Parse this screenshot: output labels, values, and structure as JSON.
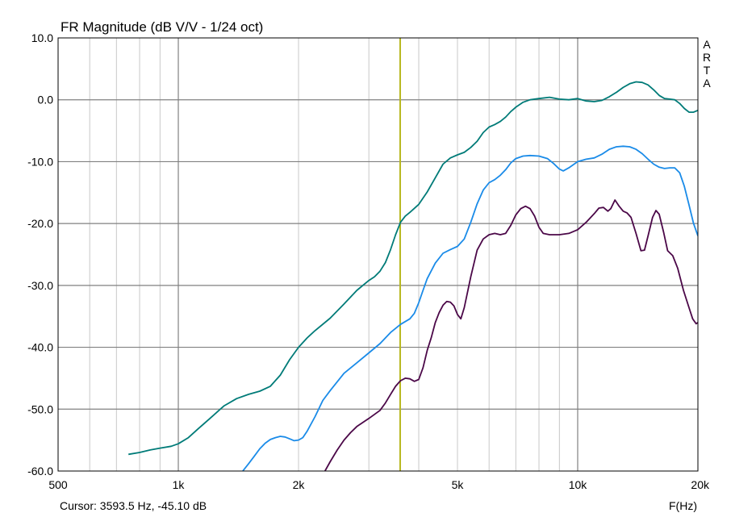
{
  "chart_data": {
    "type": "line",
    "title": "FR Magnitude (dB V/V - 1/24 oct)",
    "xlabel": "F(Hz)",
    "ylabel": "",
    "x_scale": "log",
    "xlim": [
      500,
      20000
    ],
    "ylim": [
      -60,
      10
    ],
    "grid": true,
    "x_ticks": [
      {
        "value": 500,
        "label": "500"
      },
      {
        "value": 1000,
        "label": "1k"
      },
      {
        "value": 2000,
        "label": "2k"
      },
      {
        "value": 5000,
        "label": "5k"
      },
      {
        "value": 10000,
        "label": "10k"
      },
      {
        "value": 20000,
        "label": "20k"
      }
    ],
    "y_ticks": [
      {
        "value": 10,
        "label": "10.0"
      },
      {
        "value": 0,
        "label": "0.0"
      },
      {
        "value": -10,
        "label": "-10.0"
      },
      {
        "value": -20,
        "label": "-20.0"
      },
      {
        "value": -30,
        "label": "-30.0"
      },
      {
        "value": -40,
        "label": "-40.0"
      },
      {
        "value": -50,
        "label": "-50.0"
      },
      {
        "value": -60,
        "label": "-60.0"
      }
    ],
    "cursor_freq": 3593.5,
    "cursor_text": "Cursor: 3593.5 Hz, -45.10 dB",
    "brand": "ARTA",
    "colors": {
      "series_1": "#007b78",
      "series_2": "#1a8be8",
      "series_3": "#4b0848",
      "cursor": "#b8b820",
      "grid_major": "#808080",
      "grid_minor": "#c8c8c8"
    },
    "series": [
      {
        "color": "#007b78",
        "points": [
          [
            750,
            -57.3
          ],
          [
            800,
            -57.0
          ],
          [
            850,
            -56.6
          ],
          [
            900,
            -56.3
          ],
          [
            960,
            -56.0
          ],
          [
            1000,
            -55.6
          ],
          [
            1060,
            -54.6
          ],
          [
            1120,
            -53.2
          ],
          [
            1200,
            -51.5
          ],
          [
            1300,
            -49.5
          ],
          [
            1400,
            -48.3
          ],
          [
            1500,
            -47.6
          ],
          [
            1600,
            -47.1
          ],
          [
            1700,
            -46.3
          ],
          [
            1800,
            -44.5
          ],
          [
            1900,
            -42.0
          ],
          [
            2000,
            -40.0
          ],
          [
            2100,
            -38.5
          ],
          [
            2200,
            -37.3
          ],
          [
            2400,
            -35.3
          ],
          [
            2600,
            -33.0
          ],
          [
            2800,
            -30.8
          ],
          [
            3000,
            -29.2
          ],
          [
            3100,
            -28.6
          ],
          [
            3200,
            -27.7
          ],
          [
            3300,
            -26.3
          ],
          [
            3400,
            -24.2
          ],
          [
            3500,
            -21.8
          ],
          [
            3600,
            -19.8
          ],
          [
            3700,
            -18.8
          ],
          [
            3800,
            -18.2
          ],
          [
            4000,
            -16.9
          ],
          [
            4200,
            -14.9
          ],
          [
            4400,
            -12.6
          ],
          [
            4600,
            -10.4
          ],
          [
            4800,
            -9.4
          ],
          [
            5000,
            -8.9
          ],
          [
            5200,
            -8.5
          ],
          [
            5400,
            -7.7
          ],
          [
            5600,
            -6.7
          ],
          [
            5800,
            -5.3
          ],
          [
            6000,
            -4.4
          ],
          [
            6200,
            -4.0
          ],
          [
            6400,
            -3.5
          ],
          [
            6600,
            -2.8
          ],
          [
            6800,
            -1.9
          ],
          [
            7000,
            -1.2
          ],
          [
            7300,
            -0.4
          ],
          [
            7600,
            0.0
          ],
          [
            8000,
            0.2
          ],
          [
            8500,
            0.4
          ],
          [
            9000,
            0.1
          ],
          [
            9500,
            0.0
          ],
          [
            10000,
            0.2
          ],
          [
            10500,
            -0.2
          ],
          [
            11000,
            -0.3
          ],
          [
            11500,
            -0.1
          ],
          [
            12000,
            0.5
          ],
          [
            12500,
            1.2
          ],
          [
            13000,
            2.0
          ],
          [
            13500,
            2.6
          ],
          [
            14000,
            2.9
          ],
          [
            14500,
            2.8
          ],
          [
            15000,
            2.4
          ],
          [
            15500,
            1.6
          ],
          [
            16000,
            0.7
          ],
          [
            16500,
            0.2
          ],
          [
            17000,
            0.1
          ],
          [
            17500,
            0.0
          ],
          [
            18000,
            -0.6
          ],
          [
            18500,
            -1.4
          ],
          [
            19000,
            -2.0
          ],
          [
            19500,
            -2.0
          ],
          [
            20000,
            -1.7
          ]
        ]
      },
      {
        "color": "#1a8be8",
        "points": [
          [
            1450,
            -60.0
          ],
          [
            1500,
            -58.8
          ],
          [
            1550,
            -57.6
          ],
          [
            1600,
            -56.4
          ],
          [
            1650,
            -55.5
          ],
          [
            1700,
            -54.9
          ],
          [
            1750,
            -54.6
          ],
          [
            1800,
            -54.4
          ],
          [
            1850,
            -54.5
          ],
          [
            1900,
            -54.8
          ],
          [
            1950,
            -55.1
          ],
          [
            2000,
            -55.0
          ],
          [
            2050,
            -54.6
          ],
          [
            2100,
            -53.6
          ],
          [
            2200,
            -51.2
          ],
          [
            2300,
            -48.6
          ],
          [
            2400,
            -47.0
          ],
          [
            2600,
            -44.2
          ],
          [
            2800,
            -42.5
          ],
          [
            3000,
            -40.9
          ],
          [
            3200,
            -39.4
          ],
          [
            3400,
            -37.6
          ],
          [
            3600,
            -36.3
          ],
          [
            3800,
            -35.4
          ],
          [
            3900,
            -34.5
          ],
          [
            4000,
            -32.8
          ],
          [
            4100,
            -30.8
          ],
          [
            4200,
            -28.9
          ],
          [
            4400,
            -26.4
          ],
          [
            4600,
            -24.8
          ],
          [
            4800,
            -24.2
          ],
          [
            5000,
            -23.7
          ],
          [
            5200,
            -22.5
          ],
          [
            5400,
            -19.8
          ],
          [
            5600,
            -16.8
          ],
          [
            5800,
            -14.6
          ],
          [
            6000,
            -13.4
          ],
          [
            6200,
            -12.9
          ],
          [
            6400,
            -12.2
          ],
          [
            6600,
            -11.3
          ],
          [
            6800,
            -10.2
          ],
          [
            7000,
            -9.5
          ],
          [
            7300,
            -9.1
          ],
          [
            7600,
            -9.0
          ],
          [
            8000,
            -9.1
          ],
          [
            8400,
            -9.5
          ],
          [
            8700,
            -10.3
          ],
          [
            9000,
            -11.2
          ],
          [
            9200,
            -11.5
          ],
          [
            9500,
            -11.0
          ],
          [
            10000,
            -10.0
          ],
          [
            10500,
            -9.6
          ],
          [
            11000,
            -9.4
          ],
          [
            11500,
            -8.8
          ],
          [
            12000,
            -8.0
          ],
          [
            12500,
            -7.6
          ],
          [
            13000,
            -7.5
          ],
          [
            13500,
            -7.6
          ],
          [
            14000,
            -8.0
          ],
          [
            14500,
            -8.7
          ],
          [
            15000,
            -9.6
          ],
          [
            15500,
            -10.4
          ],
          [
            16000,
            -10.9
          ],
          [
            16500,
            -11.1
          ],
          [
            17000,
            -11.0
          ],
          [
            17500,
            -11.0
          ],
          [
            18000,
            -11.8
          ],
          [
            18500,
            -14.0
          ],
          [
            19000,
            -17.0
          ],
          [
            19500,
            -20.0
          ],
          [
            20000,
            -22.0
          ]
        ]
      },
      {
        "color": "#4b0848",
        "points": [
          [
            2330,
            -60.0
          ],
          [
            2400,
            -58.5
          ],
          [
            2500,
            -56.6
          ],
          [
            2600,
            -55.0
          ],
          [
            2700,
            -53.8
          ],
          [
            2800,
            -52.8
          ],
          [
            3000,
            -51.5
          ],
          [
            3200,
            -50.2
          ],
          [
            3300,
            -49.0
          ],
          [
            3400,
            -47.6
          ],
          [
            3500,
            -46.3
          ],
          [
            3600,
            -45.4
          ],
          [
            3700,
            -45.0
          ],
          [
            3800,
            -45.1
          ],
          [
            3900,
            -45.5
          ],
          [
            4000,
            -45.2
          ],
          [
            4100,
            -43.3
          ],
          [
            4200,
            -40.5
          ],
          [
            4300,
            -38.4
          ],
          [
            4400,
            -36.0
          ],
          [
            4500,
            -34.4
          ],
          [
            4600,
            -33.2
          ],
          [
            4700,
            -32.6
          ],
          [
            4800,
            -32.7
          ],
          [
            4900,
            -33.3
          ],
          [
            5000,
            -34.7
          ],
          [
            5100,
            -35.4
          ],
          [
            5200,
            -33.6
          ],
          [
            5400,
            -28.6
          ],
          [
            5600,
            -24.3
          ],
          [
            5800,
            -22.5
          ],
          [
            6000,
            -21.8
          ],
          [
            6200,
            -21.6
          ],
          [
            6400,
            -21.8
          ],
          [
            6600,
            -21.6
          ],
          [
            6800,
            -20.3
          ],
          [
            7000,
            -18.6
          ],
          [
            7200,
            -17.6
          ],
          [
            7400,
            -17.2
          ],
          [
            7600,
            -17.6
          ],
          [
            7800,
            -18.8
          ],
          [
            8000,
            -20.6
          ],
          [
            8200,
            -21.6
          ],
          [
            8500,
            -21.8
          ],
          [
            9000,
            -21.8
          ],
          [
            9500,
            -21.6
          ],
          [
            10000,
            -21.0
          ],
          [
            10500,
            -19.8
          ],
          [
            11000,
            -18.4
          ],
          [
            11300,
            -17.5
          ],
          [
            11600,
            -17.4
          ],
          [
            11900,
            -18.0
          ],
          [
            12100,
            -17.6
          ],
          [
            12400,
            -16.2
          ],
          [
            12700,
            -17.2
          ],
          [
            13000,
            -18.0
          ],
          [
            13300,
            -18.3
          ],
          [
            13600,
            -19.0
          ],
          [
            14000,
            -21.6
          ],
          [
            14400,
            -24.4
          ],
          [
            14700,
            -24.3
          ],
          [
            15000,
            -22.0
          ],
          [
            15400,
            -19.0
          ],
          [
            15700,
            -17.9
          ],
          [
            16000,
            -18.5
          ],
          [
            16400,
            -21.3
          ],
          [
            16800,
            -24.4
          ],
          [
            17300,
            -25.2
          ],
          [
            17800,
            -27.2
          ],
          [
            18400,
            -30.8
          ],
          [
            19000,
            -33.6
          ],
          [
            19400,
            -35.4
          ],
          [
            19800,
            -36.2
          ],
          [
            20000,
            -36.0
          ]
        ]
      }
    ]
  }
}
